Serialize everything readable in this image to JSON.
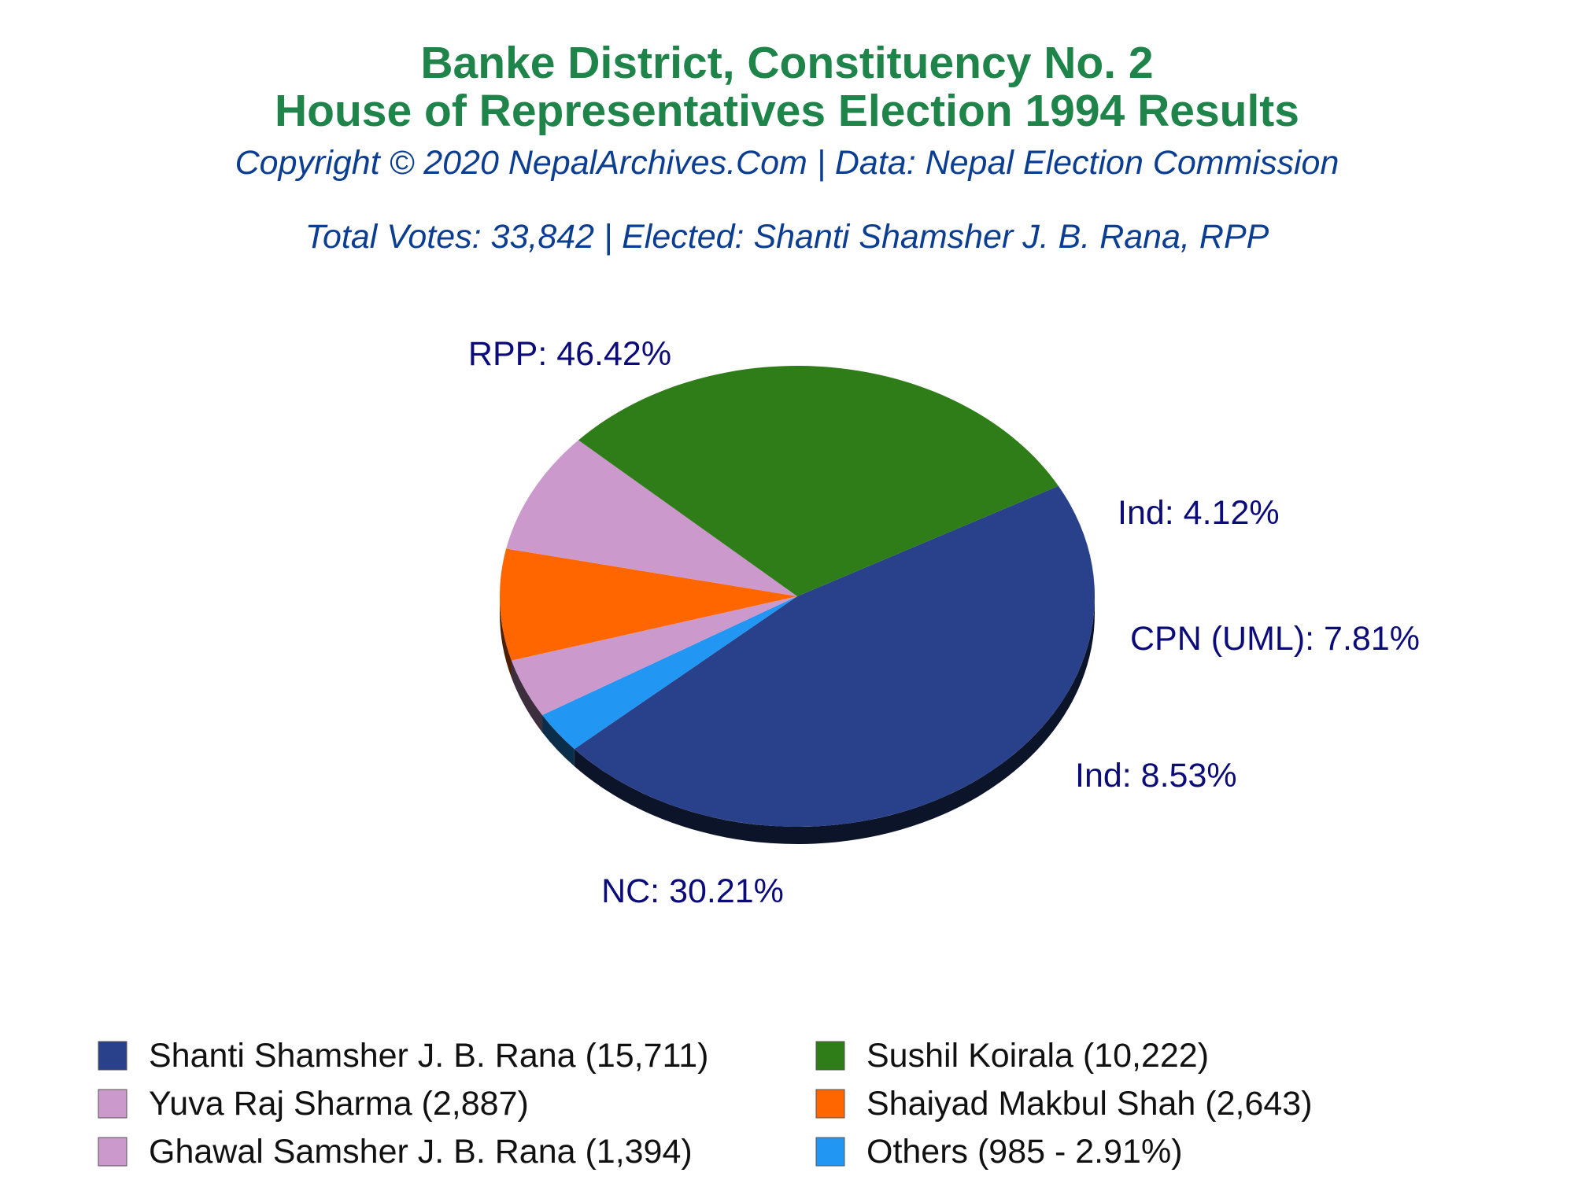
{
  "title_line1": "Banke District, Constituency No. 2",
  "title_line2": "House of Representatives Election 1994 Results",
  "copyright": "Copyright © 2020 NepalArchives.Com | Data: Nepal Election Commission",
  "summary": "Total Votes: 33,842 | Elected: Shanti Shamsher J. B. Rana, RPP",
  "chart_data": {
    "type": "pie",
    "slices": [
      {
        "label": "RPP: 46.42%",
        "value": 46.42,
        "color": "#28418a"
      },
      {
        "label": "Others",
        "value": 2.91,
        "color": "#2196f3"
      },
      {
        "label": "Ind: 4.12%",
        "value": 4.12,
        "color": "#cc99cc"
      },
      {
        "label": "CPN (UML): 7.81%",
        "value": 7.81,
        "color": "#ff6600"
      },
      {
        "label": "Ind: 8.53%",
        "value": 8.53,
        "color": "#cc99cc"
      },
      {
        "label": "NC: 30.21%",
        "value": 30.21,
        "color": "#2e7d18"
      }
    ],
    "legend": [
      {
        "text": "Shanti Shamsher J. B. Rana (15,711)",
        "color": "#28418a"
      },
      {
        "text": "Sushil Koirala (10,222)",
        "color": "#2e7d18"
      },
      {
        "text": "Yuva Raj Sharma (2,887)",
        "color": "#cc99cc"
      },
      {
        "text": "Shaiyad Makbul Shah (2,643)",
        "color": "#ff6600"
      },
      {
        "text": "Ghawal Samsher J. B. Rana (1,394)",
        "color": "#cc99cc"
      },
      {
        "text": "Others (985 - 2.91%)",
        "color": "#2196f3"
      }
    ],
    "legend_position": "bottom"
  }
}
